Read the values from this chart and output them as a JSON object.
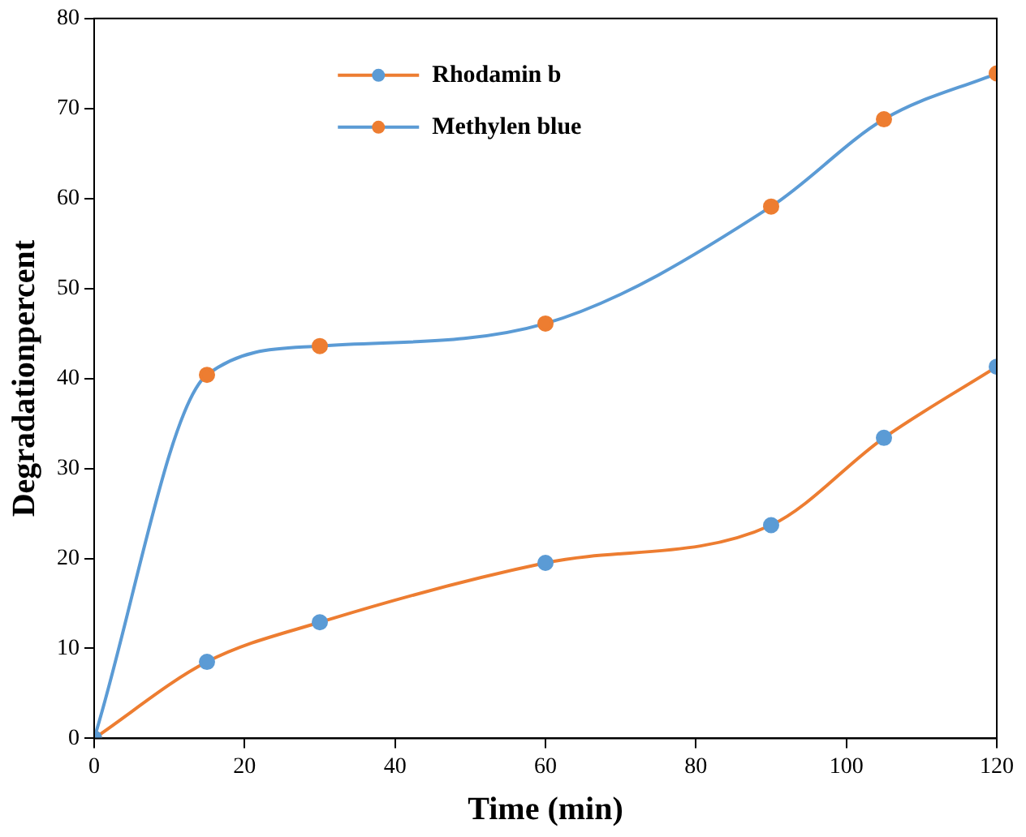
{
  "chart_data": {
    "type": "line",
    "xlabel": "Time (min)",
    "ylabel": "Degradationpercent",
    "x": [
      0,
      15,
      30,
      60,
      90,
      105,
      120
    ],
    "series": [
      {
        "name": "Rhodamin b",
        "color": "#ed7d31",
        "colors": [
          "#5b9bd5",
          "#5b9bd5",
          "#5b9bd5",
          "#5b9bd5",
          "#5b9bd5",
          "#5b9bd5",
          "#5b9bd5"
        ],
        "values": [
          0,
          8.5,
          12.9,
          19.5,
          23.7,
          33.4,
          41.3
        ]
      },
      {
        "name": "Methylen blue",
        "color": "#5b9bd5",
        "colors": [
          "#ed7d31",
          "#ed7d31",
          "#ed7d31",
          "#ed7d31",
          "#ed7d31",
          "#ed7d31",
          "#ed7d31"
        ],
        "values": [
          0,
          40.4,
          43.6,
          46.1,
          59.1,
          68.8,
          73.9
        ]
      }
    ],
    "xlim": [
      0,
      120
    ],
    "xticks": [
      0,
      20,
      40,
      60,
      80,
      100,
      120
    ],
    "ylim": [
      0,
      80
    ],
    "yticks": [
      0,
      10,
      20,
      30,
      40,
      50,
      60,
      70,
      80
    ],
    "grid": false,
    "legend": "top",
    "marker": "circle",
    "line_style": "solid"
  }
}
